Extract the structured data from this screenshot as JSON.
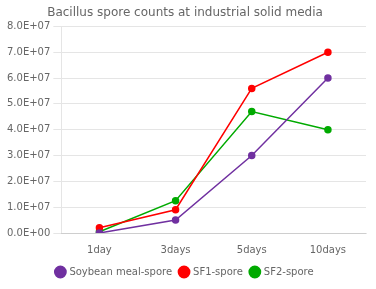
{
  "chart_data": {
    "type": "line",
    "title": "Bacillus spore counts at industrial solid media",
    "categories": [
      "1day",
      "3days",
      "5days",
      "10days"
    ],
    "series": [
      {
        "name": "Soybean meal-spore",
        "color": "#7030A0",
        "marker": "circle",
        "values": [
          0,
          5000000,
          30000000,
          60000000
        ]
      },
      {
        "name": "SF1-spore",
        "color": "#FF0000",
        "marker": "circle",
        "values": [
          2000000,
          9000000,
          56000000,
          70000000
        ]
      },
      {
        "name": "SF2-spore",
        "color": "#00AA00",
        "marker": "circle",
        "values": [
          500000,
          12500000,
          47000000,
          40000000
        ]
      }
    ],
    "ylim": [
      0,
      80000000
    ],
    "yticks": [
      {
        "value": 0,
        "label": "0.0E+00"
      },
      {
        "value": 10000000,
        "label": "1.0E+07"
      },
      {
        "value": 20000000,
        "label": "2.0E+07"
      },
      {
        "value": 30000000,
        "label": "3.0E+07"
      },
      {
        "value": 40000000,
        "label": "4.0E+07"
      },
      {
        "value": 50000000,
        "label": "5.0E+07"
      },
      {
        "value": 60000000,
        "label": "6.0E+07"
      },
      {
        "value": 70000000,
        "label": "7.0E+07"
      },
      {
        "value": 80000000,
        "label": "8.0E+07"
      }
    ],
    "grid": true,
    "legend": "bottom"
  }
}
